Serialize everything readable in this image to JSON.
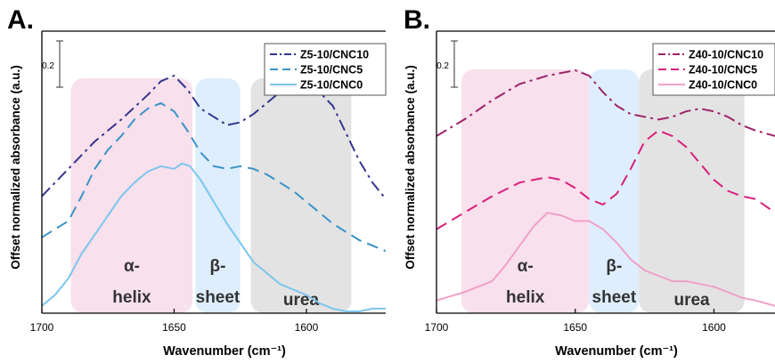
{
  "chart_data": [
    {
      "panel_label": "A.",
      "type": "line",
      "xlabel": "Wavenumber (cm⁻¹)",
      "ylabel": "Offset normalized absorbance (a.u.)",
      "xlim": [
        1700,
        1570
      ],
      "x_reversed": true,
      "xticks": [
        1700,
        1650,
        1600
      ],
      "scale_bar_label": "0.2",
      "regions": [
        {
          "label_lines": [
            "α-",
            "helix"
          ],
          "x_range": [
            1689,
            1643
          ],
          "color": "#f8e0ec"
        },
        {
          "label_lines": [
            "β-",
            "sheet"
          ],
          "x_range": [
            1642,
            1625
          ],
          "color": "#deeefc"
        },
        {
          "label_lines": [
            "urea"
          ],
          "x_range": [
            1621,
            1583
          ],
          "color": "#e3e3e3"
        }
      ],
      "legend": "top-right",
      "series": [
        {
          "name": "Z5-10/CNC10",
          "color": "#35358f",
          "dash": "dashdot",
          "points": [
            [
              1700,
              0.42
            ],
            [
              1690,
              0.52
            ],
            [
              1680,
              0.62
            ],
            [
              1670,
              0.7
            ],
            [
              1660,
              0.79
            ],
            [
              1655,
              0.84
            ],
            [
              1650,
              0.86
            ],
            [
              1645,
              0.81
            ],
            [
              1640,
              0.74
            ],
            [
              1635,
              0.71
            ],
            [
              1630,
              0.68
            ],
            [
              1625,
              0.69
            ],
            [
              1620,
              0.72
            ],
            [
              1615,
              0.76
            ],
            [
              1610,
              0.8
            ],
            [
              1605,
              0.82
            ],
            [
              1600,
              0.82
            ],
            [
              1595,
              0.8
            ],
            [
              1590,
              0.75
            ],
            [
              1585,
              0.65
            ],
            [
              1580,
              0.55
            ],
            [
              1575,
              0.47
            ],
            [
              1570,
              0.41
            ]
          ]
        },
        {
          "name": "Z5-10/CNC5",
          "color": "#3a93c6",
          "dash": "dashed",
          "points": [
            [
              1700,
              0.27
            ],
            [
              1690,
              0.33
            ],
            [
              1685,
              0.42
            ],
            [
              1680,
              0.52
            ],
            [
              1675,
              0.59
            ],
            [
              1670,
              0.64
            ],
            [
              1665,
              0.7
            ],
            [
              1660,
              0.74
            ],
            [
              1655,
              0.76
            ],
            [
              1650,
              0.73
            ],
            [
              1645,
              0.66
            ],
            [
              1640,
              0.58
            ],
            [
              1635,
              0.53
            ],
            [
              1630,
              0.52
            ],
            [
              1625,
              0.53
            ],
            [
              1620,
              0.52
            ],
            [
              1615,
              0.5
            ],
            [
              1610,
              0.47
            ],
            [
              1605,
              0.44
            ],
            [
              1600,
              0.4
            ],
            [
              1595,
              0.36
            ],
            [
              1590,
              0.32
            ],
            [
              1585,
              0.29
            ],
            [
              1580,
              0.26
            ],
            [
              1575,
              0.24
            ],
            [
              1570,
              0.22
            ]
          ]
        },
        {
          "name": "Z5-10/CNC0",
          "color": "#7cc6ec",
          "dash": "solid",
          "points": [
            [
              1700,
              0.02
            ],
            [
              1695,
              0.06
            ],
            [
              1690,
              0.12
            ],
            [
              1685,
              0.21
            ],
            [
              1680,
              0.28
            ],
            [
              1675,
              0.35
            ],
            [
              1670,
              0.42
            ],
            [
              1665,
              0.47
            ],
            [
              1660,
              0.51
            ],
            [
              1655,
              0.53
            ],
            [
              1650,
              0.52
            ],
            [
              1647,
              0.54
            ],
            [
              1644,
              0.53
            ],
            [
              1640,
              0.48
            ],
            [
              1635,
              0.4
            ],
            [
              1630,
              0.32
            ],
            [
              1625,
              0.25
            ],
            [
              1620,
              0.18
            ],
            [
              1615,
              0.14
            ],
            [
              1610,
              0.1
            ],
            [
              1605,
              0.08
            ],
            [
              1600,
              0.06
            ],
            [
              1595,
              0.03
            ],
            [
              1590,
              0.01
            ],
            [
              1585,
              0.0
            ],
            [
              1580,
              0.0
            ],
            [
              1575,
              0.01
            ],
            [
              1570,
              0.01
            ]
          ]
        }
      ]
    },
    {
      "panel_label": "B.",
      "type": "line",
      "xlabel": "Wavenumber (cm⁻¹)",
      "ylabel": "Offset normalized absorbance (a.u.)",
      "xlim": [
        1700,
        1578
      ],
      "x_reversed": true,
      "xticks": [
        1700,
        1650,
        1600
      ],
      "scale_bar_label": "0.2",
      "regions": [
        {
          "label_lines": [
            "α-",
            "helix"
          ],
          "x_range": [
            1691,
            1645
          ],
          "color": "#f8e0ec"
        },
        {
          "label_lines": [
            "β-",
            "sheet"
          ],
          "x_range": [
            1645,
            1627
          ],
          "color": "#deeefc"
        },
        {
          "label_lines": [
            "urea"
          ],
          "x_range": [
            1627,
            1589
          ],
          "color": "#e3e3e3"
        }
      ],
      "legend": "top-right",
      "series": [
        {
          "name": "Z40-10/CNC10",
          "color": "#9e2468",
          "dash": "dashdot",
          "points": [
            [
              1700,
              0.64
            ],
            [
              1690,
              0.7
            ],
            [
              1680,
              0.77
            ],
            [
              1670,
              0.83
            ],
            [
              1660,
              0.86
            ],
            [
              1655,
              0.87
            ],
            [
              1650,
              0.88
            ],
            [
              1645,
              0.86
            ],
            [
              1640,
              0.8
            ],
            [
              1635,
              0.75
            ],
            [
              1630,
              0.72
            ],
            [
              1625,
              0.71
            ],
            [
              1620,
              0.7
            ],
            [
              1615,
              0.71
            ],
            [
              1610,
              0.73
            ],
            [
              1605,
              0.74
            ],
            [
              1600,
              0.73
            ],
            [
              1595,
              0.71
            ],
            [
              1590,
              0.68
            ],
            [
              1585,
              0.66
            ],
            [
              1578,
              0.64
            ]
          ]
        },
        {
          "name": "Z40-10/CNC5",
          "color": "#d91f7c",
          "dash": "dashed",
          "points": [
            [
              1700,
              0.3
            ],
            [
              1690,
              0.36
            ],
            [
              1680,
              0.42
            ],
            [
              1670,
              0.47
            ],
            [
              1660,
              0.49
            ],
            [
              1655,
              0.48
            ],
            [
              1650,
              0.45
            ],
            [
              1645,
              0.41
            ],
            [
              1640,
              0.39
            ],
            [
              1635,
              0.43
            ],
            [
              1630,
              0.52
            ],
            [
              1625,
              0.62
            ],
            [
              1620,
              0.66
            ],
            [
              1615,
              0.64
            ],
            [
              1610,
              0.6
            ],
            [
              1605,
              0.54
            ],
            [
              1600,
              0.48
            ],
            [
              1595,
              0.44
            ],
            [
              1590,
              0.42
            ],
            [
              1585,
              0.41
            ],
            [
              1578,
              0.36
            ]
          ]
        },
        {
          "name": "Z40-10/CNC0",
          "color": "#f0a0c8",
          "dash": "solid",
          "points": [
            [
              1700,
              0.04
            ],
            [
              1690,
              0.07
            ],
            [
              1680,
              0.11
            ],
            [
              1675,
              0.17
            ],
            [
              1670,
              0.24
            ],
            [
              1665,
              0.31
            ],
            [
              1660,
              0.36
            ],
            [
              1655,
              0.35
            ],
            [
              1650,
              0.33
            ],
            [
              1645,
              0.33
            ],
            [
              1640,
              0.3
            ],
            [
              1635,
              0.25
            ],
            [
              1630,
              0.19
            ],
            [
              1625,
              0.15
            ],
            [
              1620,
              0.13
            ],
            [
              1615,
              0.11
            ],
            [
              1610,
              0.11
            ],
            [
              1605,
              0.1
            ],
            [
              1600,
              0.09
            ],
            [
              1595,
              0.07
            ],
            [
              1590,
              0.05
            ],
            [
              1585,
              0.04
            ],
            [
              1578,
              0.02
            ]
          ]
        }
      ]
    }
  ]
}
